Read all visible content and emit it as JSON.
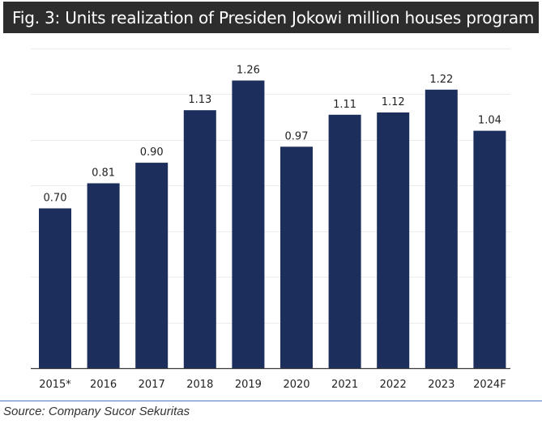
{
  "header": {
    "title": "Fig. 3: Units realization of Presiden Jokowi million houses program"
  },
  "footer": {
    "source": "Source: Company Sucor Sekuritas"
  },
  "colors": {
    "bar": "#1c2f5c",
    "title_bg": "#2d2d2d",
    "gridline": "#ececec",
    "axis": "#3a3a3a",
    "rule": "#4a78c2"
  },
  "chart_data": {
    "type": "bar",
    "title": "Fig. 3: Units realization of Presiden Jokowi million houses program",
    "xlabel": "",
    "ylabel": "",
    "categories": [
      "2015*",
      "2016",
      "2017",
      "2018",
      "2019",
      "2020",
      "2021",
      "2022",
      "2023",
      "2024F"
    ],
    "values": [
      0.7,
      0.81,
      0.9,
      1.13,
      1.26,
      0.97,
      1.11,
      1.12,
      1.22,
      1.04
    ],
    "value_labels": [
      "0.70",
      "0.81",
      "0.90",
      "1.13",
      "1.26",
      "0.97",
      "1.11",
      "1.12",
      "1.22",
      "1.04"
    ],
    "ylim": [
      0,
      1.4
    ],
    "gridlines": [
      0.2,
      0.4,
      0.6,
      0.8,
      1.0,
      1.2,
      1.4
    ],
    "grid": true,
    "legend": "none"
  }
}
